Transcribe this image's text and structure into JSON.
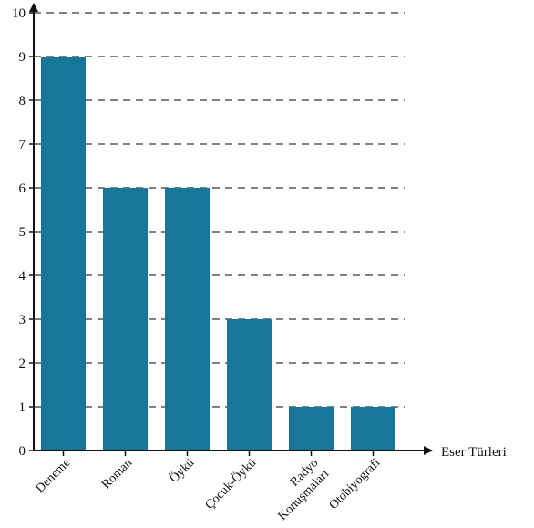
{
  "chart_data": {
    "type": "bar",
    "title": "",
    "xlabel": "Eser Türleri",
    "ylabel": "",
    "categories": [
      "Deneme",
      "Roman",
      "Öykü",
      "Çocuk-Öykü",
      "Radyo Konuşmaları",
      "Otobiyografi"
    ],
    "category_lines": [
      [
        "Deneme"
      ],
      [
        "Roman"
      ],
      [
        "Öykü"
      ],
      [
        "Çocuk-Öykü"
      ],
      [
        "Radyo",
        "Konuşmaları"
      ],
      [
        "Otobiyografi"
      ]
    ],
    "values": [
      9,
      6,
      6,
      3,
      1,
      1
    ],
    "ylim": [
      0,
      10
    ],
    "yticks": [
      "0",
      "1",
      "2",
      "3",
      "4",
      "5",
      "6",
      "7",
      "8",
      "9",
      "10"
    ],
    "grid": "dashed horizontal",
    "legend": "none",
    "bar_color": "#18769a",
    "axis_color": "#111111",
    "grid_color": "#555555"
  }
}
